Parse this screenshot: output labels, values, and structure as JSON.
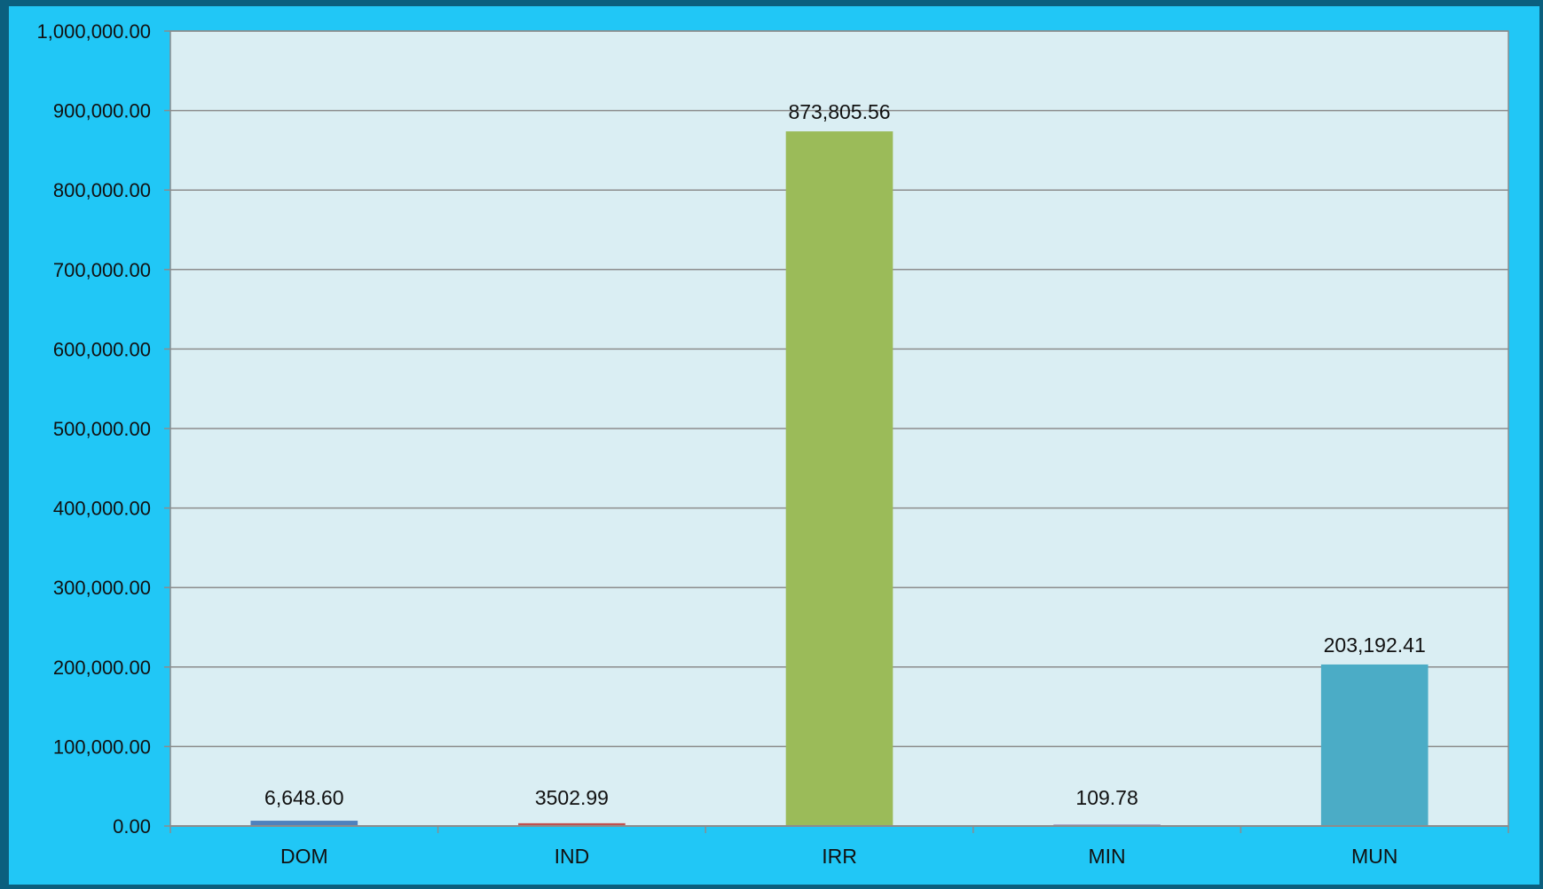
{
  "chart_data": {
    "type": "bar",
    "categories": [
      "DOM",
      "IND",
      "IRR",
      "MIN",
      "MUN"
    ],
    "values": [
      6648.6,
      3502.99,
      873805.56,
      109.78,
      203192.41
    ],
    "data_labels": [
      "6,648.60",
      "3502.99",
      "873,805.56",
      "109.78",
      "203,192.41"
    ],
    "colors": [
      "#4f81bd",
      "#c0504d",
      "#9bbb59",
      "#8064a2",
      "#4bacc6"
    ],
    "ylim": [
      0,
      1000000
    ],
    "yticks": [
      0,
      100000,
      200000,
      300000,
      400000,
      500000,
      600000,
      700000,
      800000,
      900000,
      1000000
    ],
    "ytick_labels": [
      "0.00",
      "100,000.00",
      "200,000.00",
      "300,000.00",
      "400,000.00",
      "500,000.00",
      "600,000.00",
      "700,000.00",
      "800,000.00",
      "900,000.00",
      "1,000,000.00"
    ],
    "grid": true,
    "legend": "none",
    "plot_background": "#daeef3",
    "frame_background": "#21c7f6"
  }
}
